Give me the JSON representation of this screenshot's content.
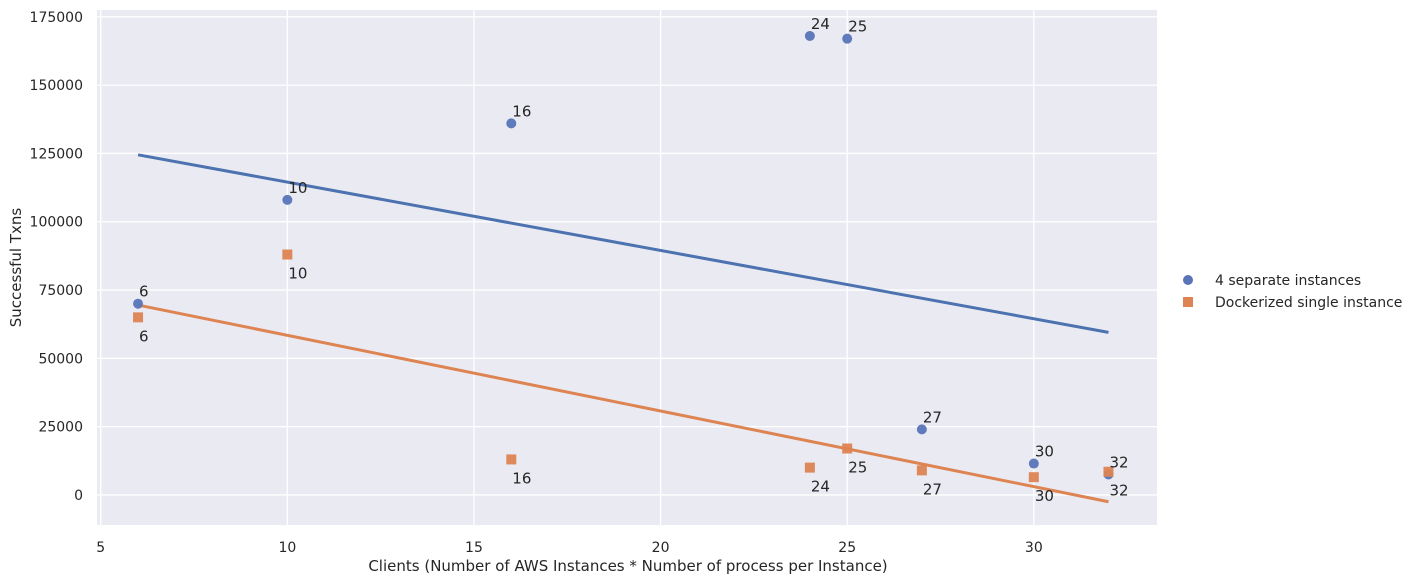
{
  "chart_data": {
    "type": "scatter",
    "xlabel": "Clients (Number of AWS Instances * Number of process per Instance)",
    "ylabel": "Successful Txns",
    "xlim": [
      4.9,
      33.3
    ],
    "ylim": [
      -11000,
      177500
    ],
    "xticks": [
      5,
      10,
      15,
      20,
      25,
      30
    ],
    "yticks": [
      0,
      25000,
      50000,
      75000,
      100000,
      125000,
      150000,
      175000
    ],
    "grid": true,
    "legend_position": "right",
    "series": [
      {
        "name": "4 separate instances",
        "marker": "circle",
        "color": "#5975b8",
        "points": [
          {
            "x": 6,
            "y": 70000,
            "label": "6"
          },
          {
            "x": 10,
            "y": 108000,
            "label": "10"
          },
          {
            "x": 16,
            "y": 136000,
            "label": "16"
          },
          {
            "x": 24,
            "y": 168000,
            "label": "24"
          },
          {
            "x": 25,
            "y": 167000,
            "label": "25"
          },
          {
            "x": 27,
            "y": 24000,
            "label": "27"
          },
          {
            "x": 30,
            "y": 11500,
            "label": "30"
          },
          {
            "x": 32,
            "y": 7500,
            "label": "32"
          }
        ],
        "trendline": {
          "x": [
            6,
            32
          ],
          "y": [
            124500,
            59500
          ],
          "color": "#4c72b0"
        }
      },
      {
        "name": "Dockerized single instance",
        "marker": "square",
        "color": "#dd8452",
        "points": [
          {
            "x": 6,
            "y": 65000,
            "label": "6"
          },
          {
            "x": 10,
            "y": 88000,
            "label": "10"
          },
          {
            "x": 16,
            "y": 13000,
            "label": "16"
          },
          {
            "x": 24,
            "y": 10000,
            "label": "24"
          },
          {
            "x": 25,
            "y": 17000,
            "label": "25"
          },
          {
            "x": 27,
            "y": 9000,
            "label": "27"
          },
          {
            "x": 30,
            "y": 6500,
            "label": "30"
          },
          {
            "x": 32,
            "y": 8500,
            "label": "32"
          }
        ],
        "trendline": {
          "x": [
            6,
            32
          ],
          "y": [
            69500,
            -2500
          ],
          "color": "#dd8452"
        }
      }
    ]
  }
}
